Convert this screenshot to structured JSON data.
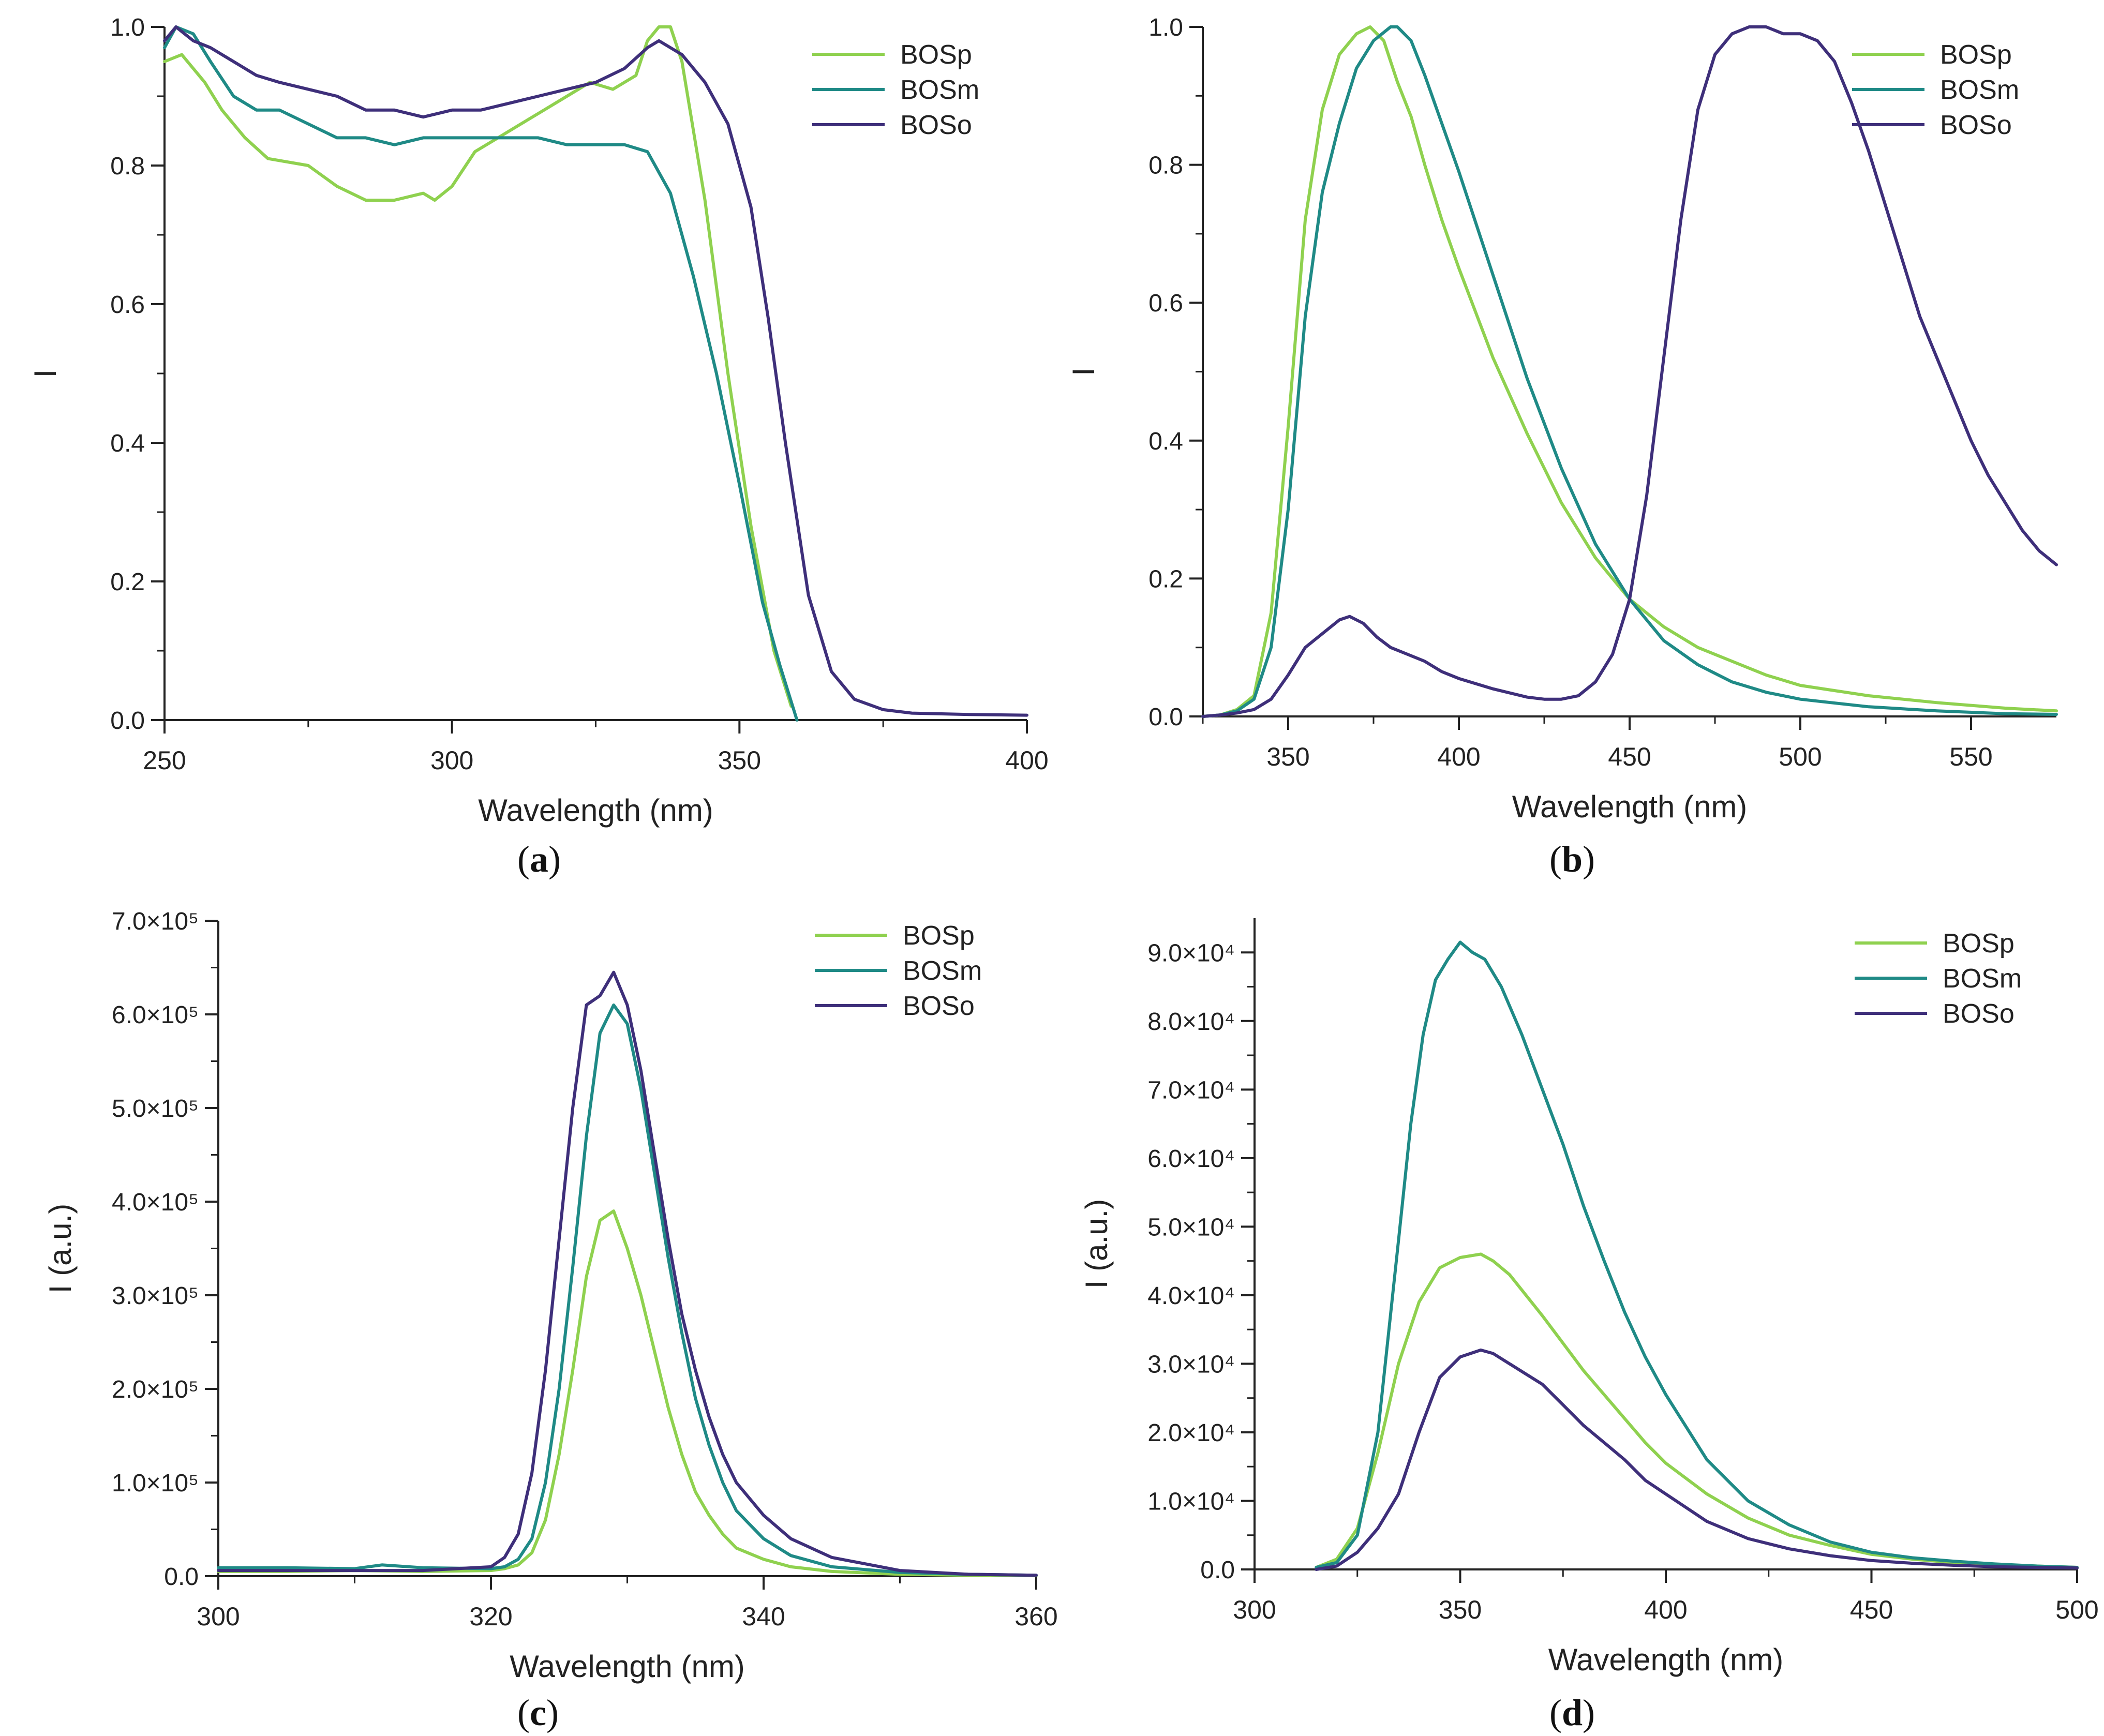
{
  "series_colors": {
    "BOSp": "#8fd14f",
    "BOSm": "#1f8a86",
    "BOSo": "#3e2f7a"
  },
  "chart_data": [
    {
      "id": "a",
      "type": "line",
      "panel_label": "a",
      "title": "",
      "xlabel": "Wavelength (nm)",
      "ylabel": "I",
      "xlim": [
        250,
        400
      ],
      "ylim": [
        0.0,
        1.0
      ],
      "xticks": [
        250,
        300,
        350,
        400
      ],
      "xtick_labels": [
        "250",
        "300",
        "350",
        "400"
      ],
      "yticks": [
        0.0,
        0.2,
        0.4,
        0.6,
        0.8,
        1.0
      ],
      "ytick_labels": [
        "0.0",
        "0.2",
        "0.4",
        "0.6",
        "0.8",
        "1.0"
      ],
      "legend": [
        "BOSp",
        "BOSm",
        "BOSo"
      ],
      "legend_position": "top-right",
      "series": [
        {
          "name": "BOSp",
          "x": [
            250,
            253,
            257,
            260,
            264,
            268,
            275,
            280,
            285,
            290,
            295,
            297,
            300,
            304,
            308,
            312,
            316,
            320,
            324,
            328,
            332,
            334,
            336,
            338,
            340,
            344,
            348,
            352,
            356,
            359
          ],
          "y": [
            0.95,
            0.96,
            0.92,
            0.88,
            0.84,
            0.81,
            0.8,
            0.77,
            0.75,
            0.75,
            0.76,
            0.75,
            0.77,
            0.82,
            0.84,
            0.86,
            0.88,
            0.9,
            0.92,
            0.91,
            0.93,
            0.98,
            1.0,
            1.0,
            0.95,
            0.75,
            0.5,
            0.28,
            0.1,
            0.02
          ]
        },
        {
          "name": "BOSm",
          "x": [
            250,
            252,
            255,
            258,
            262,
            266,
            270,
            275,
            280,
            285,
            290,
            295,
            300,
            305,
            310,
            315,
            320,
            325,
            330,
            334,
            338,
            342,
            346,
            350,
            354,
            357,
            360
          ],
          "y": [
            0.97,
            1.0,
            0.99,
            0.95,
            0.9,
            0.88,
            0.88,
            0.86,
            0.84,
            0.84,
            0.83,
            0.84,
            0.84,
            0.84,
            0.84,
            0.84,
            0.83,
            0.83,
            0.83,
            0.82,
            0.76,
            0.64,
            0.5,
            0.34,
            0.17,
            0.08,
            0.0
          ]
        },
        {
          "name": "BOSo",
          "x": [
            250,
            252,
            255,
            258,
            262,
            266,
            270,
            275,
            280,
            285,
            290,
            295,
            300,
            305,
            310,
            315,
            320,
            325,
            330,
            334,
            336,
            340,
            344,
            348,
            352,
            355,
            358,
            362,
            366,
            370,
            375,
            380,
            390,
            400
          ],
          "y": [
            0.98,
            1.0,
            0.98,
            0.97,
            0.95,
            0.93,
            0.92,
            0.91,
            0.9,
            0.88,
            0.88,
            0.87,
            0.88,
            0.88,
            0.89,
            0.9,
            0.91,
            0.92,
            0.94,
            0.97,
            0.98,
            0.96,
            0.92,
            0.86,
            0.74,
            0.58,
            0.4,
            0.18,
            0.07,
            0.03,
            0.015,
            0.01,
            0.008,
            0.007
          ]
        }
      ]
    },
    {
      "id": "b",
      "type": "line",
      "panel_label": "b",
      "title": "",
      "xlabel": "Wavelength (nm)",
      "ylabel": "I",
      "xlim": [
        325,
        575
      ],
      "ylim": [
        0.0,
        1.0
      ],
      "xticks": [
        350,
        400,
        450,
        500,
        550
      ],
      "xtick_labels": [
        "350",
        "400",
        "450",
        "500",
        "550"
      ],
      "yticks": [
        0.0,
        0.2,
        0.4,
        0.6,
        0.8,
        1.0
      ],
      "ytick_labels": [
        "0.0",
        "0.2",
        "0.4",
        "0.6",
        "0.8",
        "1.0"
      ],
      "legend": [
        "BOSp",
        "BOSm",
        "BOSo"
      ],
      "legend_position": "top-right",
      "series": [
        {
          "name": "BOSp",
          "x": [
            325,
            330,
            335,
            340,
            345,
            350,
            355,
            360,
            365,
            370,
            374,
            378,
            382,
            386,
            390,
            395,
            400,
            410,
            420,
            430,
            440,
            450,
            460,
            470,
            480,
            490,
            500,
            520,
            540,
            560,
            575
          ],
          "y": [
            0.0,
            0.002,
            0.01,
            0.03,
            0.15,
            0.42,
            0.72,
            0.88,
            0.96,
            0.99,
            1.0,
            0.98,
            0.92,
            0.87,
            0.8,
            0.72,
            0.65,
            0.52,
            0.41,
            0.31,
            0.23,
            0.17,
            0.13,
            0.1,
            0.08,
            0.06,
            0.045,
            0.03,
            0.02,
            0.012,
            0.008
          ]
        },
        {
          "name": "BOSm",
          "x": [
            325,
            330,
            335,
            340,
            345,
            350,
            355,
            360,
            365,
            370,
            375,
            380,
            382,
            386,
            390,
            395,
            400,
            410,
            420,
            430,
            440,
            450,
            460,
            470,
            480,
            490,
            500,
            520,
            540,
            560,
            575
          ],
          "y": [
            0.0,
            0.002,
            0.008,
            0.025,
            0.1,
            0.3,
            0.58,
            0.76,
            0.86,
            0.94,
            0.98,
            1.0,
            1.0,
            0.98,
            0.93,
            0.86,
            0.79,
            0.64,
            0.49,
            0.36,
            0.25,
            0.17,
            0.11,
            0.075,
            0.05,
            0.035,
            0.025,
            0.014,
            0.008,
            0.004,
            0.003
          ]
        },
        {
          "name": "BOSo",
          "x": [
            325,
            330,
            335,
            340,
            345,
            350,
            355,
            360,
            365,
            368,
            372,
            376,
            380,
            385,
            390,
            395,
            400,
            410,
            420,
            425,
            430,
            435,
            440,
            445,
            450,
            455,
            460,
            465,
            470,
            475,
            480,
            485,
            490,
            495,
            500,
            505,
            510,
            515,
            520,
            525,
            530,
            535,
            540,
            545,
            550,
            555,
            560,
            565,
            570,
            575
          ],
          "y": [
            0.0,
            0.002,
            0.005,
            0.01,
            0.025,
            0.06,
            0.1,
            0.12,
            0.14,
            0.145,
            0.135,
            0.115,
            0.1,
            0.09,
            0.08,
            0.065,
            0.055,
            0.04,
            0.028,
            0.025,
            0.025,
            0.03,
            0.05,
            0.09,
            0.17,
            0.32,
            0.52,
            0.72,
            0.88,
            0.96,
            0.99,
            1.0,
            1.0,
            0.99,
            0.99,
            0.98,
            0.95,
            0.89,
            0.82,
            0.74,
            0.66,
            0.58,
            0.52,
            0.46,
            0.4,
            0.35,
            0.31,
            0.27,
            0.24,
            0.22
          ]
        }
      ]
    },
    {
      "id": "c",
      "type": "line",
      "panel_label": "c",
      "title": "",
      "xlabel": "Wavelength (nm)",
      "ylabel": "I (a.u.)",
      "xlim": [
        300,
        360
      ],
      "ylim": [
        0,
        700000
      ],
      "xticks": [
        300,
        320,
        340,
        360
      ],
      "xtick_labels": [
        "300",
        "320",
        "340",
        "360"
      ],
      "yticks": [
        0,
        100000,
        200000,
        300000,
        400000,
        500000,
        600000,
        700000
      ],
      "ytick_labels": [
        "0.0",
        "1.0×10⁵",
        "2.0×10⁵",
        "3.0×10⁵",
        "4.0×10⁵",
        "5.0×10⁵",
        "6.0×10⁵",
        "7.0×10⁵"
      ],
      "legend": [
        "BOSp",
        "BOSm",
        "BOSo"
      ],
      "legend_position": "top-right",
      "series": [
        {
          "name": "BOSp",
          "x": [
            300,
            305,
            310,
            315,
            320,
            321,
            322,
            323,
            324,
            325,
            326,
            327,
            328,
            329,
            330,
            331,
            332,
            333,
            334,
            335,
            336,
            337,
            338,
            340,
            342,
            345,
            350,
            355,
            360
          ],
          "y": [
            5000,
            5000,
            6000,
            5000,
            6000,
            8000,
            12000,
            25000,
            60000,
            130000,
            220000,
            320000,
            380000,
            390000,
            350000,
            300000,
            240000,
            180000,
            130000,
            90000,
            65000,
            45000,
            30000,
            18000,
            10000,
            5000,
            2000,
            1000,
            500
          ]
        },
        {
          "name": "BOSm",
          "x": [
            300,
            305,
            310,
            312,
            315,
            320,
            321,
            322,
            323,
            324,
            325,
            326,
            327,
            328,
            329,
            330,
            331,
            332,
            333,
            334,
            335,
            336,
            337,
            338,
            340,
            342,
            345,
            350,
            355,
            360
          ],
          "y": [
            9000,
            9000,
            8000,
            12000,
            9000,
            8000,
            10000,
            18000,
            40000,
            100000,
            200000,
            330000,
            470000,
            580000,
            610000,
            590000,
            520000,
            430000,
            340000,
            260000,
            190000,
            140000,
            100000,
            70000,
            40000,
            22000,
            10000,
            4000,
            2000,
            1000
          ]
        },
        {
          "name": "BOSo",
          "x": [
            300,
            305,
            310,
            315,
            320,
            321,
            322,
            323,
            324,
            325,
            326,
            327,
            328,
            329,
            330,
            331,
            332,
            333,
            334,
            335,
            336,
            337,
            338,
            340,
            342,
            345,
            350,
            355,
            360
          ],
          "y": [
            6000,
            6000,
            6000,
            6000,
            10000,
            20000,
            45000,
            110000,
            220000,
            360000,
            500000,
            610000,
            620000,
            645000,
            610000,
            540000,
            450000,
            360000,
            280000,
            220000,
            170000,
            130000,
            100000,
            65000,
            40000,
            20000,
            6000,
            2000,
            1000
          ]
        }
      ]
    },
    {
      "id": "d",
      "type": "line",
      "panel_label": "d",
      "title": "",
      "xlabel": "Wavelength (nm)",
      "ylabel": "I (a.u.)",
      "xlim": [
        300,
        500
      ],
      "ylim": [
        0,
        95000
      ],
      "xticks": [
        300,
        350,
        400,
        450,
        500
      ],
      "xtick_labels": [
        "300",
        "350",
        "400",
        "450",
        "500"
      ],
      "yticks": [
        0,
        10000,
        20000,
        30000,
        40000,
        50000,
        60000,
        70000,
        80000,
        90000
      ],
      "ytick_labels": [
        "0.0",
        "1.0×10⁴",
        "2.0×10⁴",
        "3.0×10⁴",
        "4.0×10⁴",
        "5.0×10⁴",
        "6.0×10⁴",
        "7.0×10⁴",
        "8.0×10⁴",
        "9.0×10⁴"
      ],
      "legend": [
        "BOSp",
        "BOSm",
        "BOSo"
      ],
      "legend_position": "top-right",
      "series": [
        {
          "name": "BOSp",
          "x": [
            315,
            320,
            325,
            330,
            335,
            340,
            345,
            350,
            355,
            358,
            362,
            366,
            370,
            375,
            380,
            385,
            390,
            395,
            400,
            410,
            420,
            430,
            440,
            450,
            460,
            470,
            480,
            490,
            500
          ],
          "y": [
            300,
            1500,
            6000,
            17000,
            30000,
            39000,
            44000,
            45500,
            46000,
            45000,
            43000,
            40000,
            37000,
            33000,
            29000,
            25500,
            22000,
            18500,
            15500,
            11000,
            7500,
            5000,
            3500,
            2200,
            1500,
            1000,
            700,
            500,
            300
          ]
        },
        {
          "name": "BOSm",
          "x": [
            315,
            320,
            325,
            330,
            335,
            338,
            341,
            344,
            347,
            350,
            353,
            356,
            360,
            365,
            370,
            375,
            380,
            385,
            390,
            395,
            400,
            410,
            420,
            430,
            440,
            450,
            460,
            470,
            480,
            490,
            500
          ],
          "y": [
            300,
            1000,
            5000,
            20000,
            48000,
            65000,
            78000,
            86000,
            89000,
            91500,
            90000,
            89000,
            85000,
            78000,
            70000,
            62000,
            53000,
            45000,
            37500,
            31000,
            25500,
            16000,
            10000,
            6500,
            4000,
            2500,
            1700,
            1200,
            800,
            500,
            300
          ]
        },
        {
          "name": "BOSo",
          "x": [
            315,
            320,
            325,
            330,
            335,
            340,
            345,
            350,
            355,
            358,
            362,
            366,
            370,
            375,
            380,
            385,
            390,
            395,
            400,
            410,
            420,
            430,
            440,
            450,
            460,
            470,
            480,
            490,
            500
          ],
          "y": [
            0,
            500,
            2500,
            6000,
            11000,
            20000,
            28000,
            31000,
            32000,
            31500,
            30000,
            28500,
            27000,
            24000,
            21000,
            18500,
            16000,
            13000,
            11000,
            7000,
            4500,
            3000,
            2000,
            1300,
            900,
            600,
            400,
            300,
            200
          ]
        }
      ]
    }
  ]
}
